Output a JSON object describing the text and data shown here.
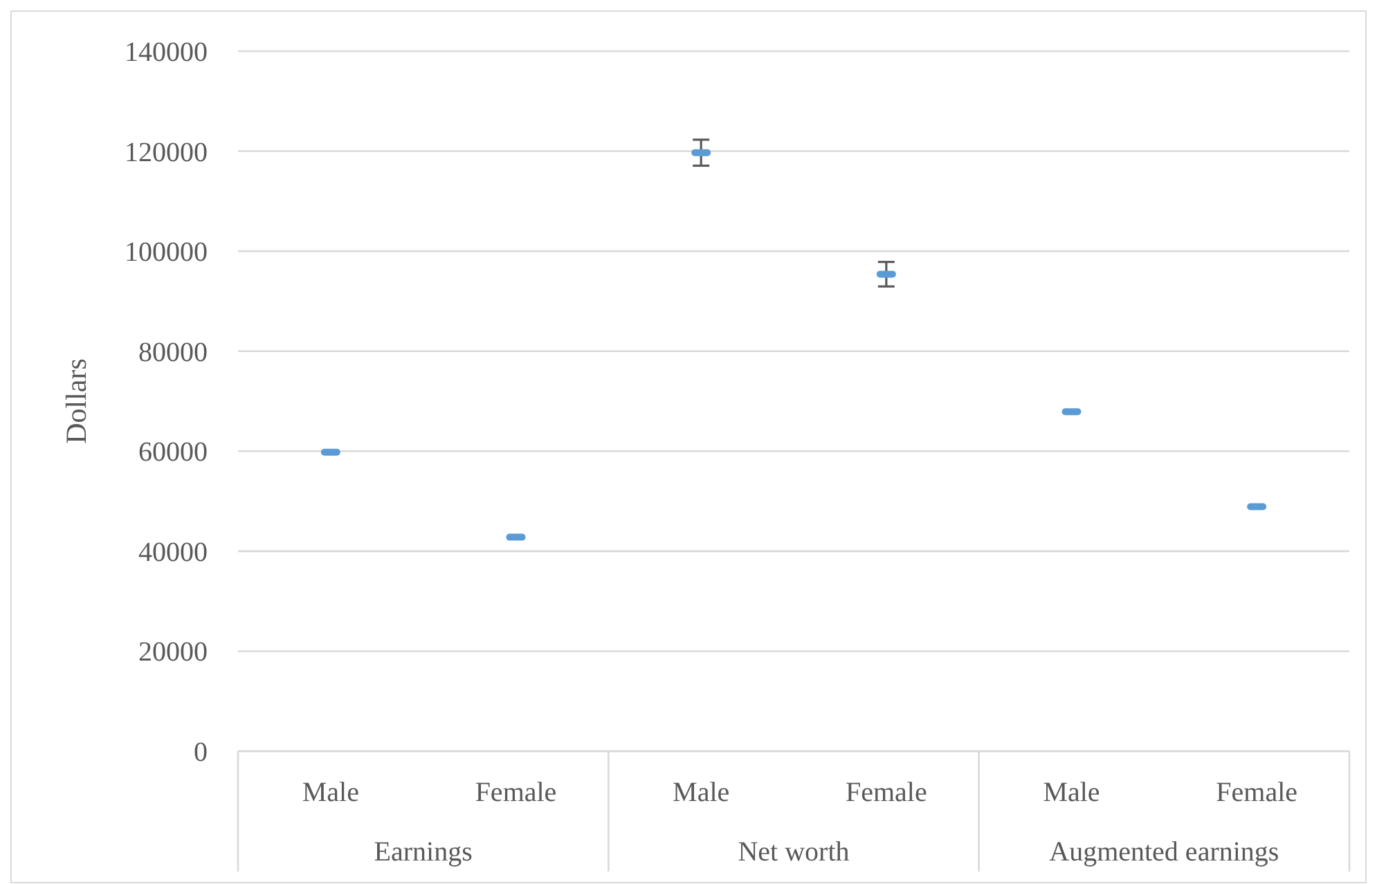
{
  "chart_data": {
    "type": "scatter",
    "ylabel": "Dollars",
    "categories": [
      "Male",
      "Female",
      "Male",
      "Female",
      "Male",
      "Female"
    ],
    "annotations": [
      "Earnings",
      "Net worth",
      "Augmented earnings"
    ],
    "values": [
      59800,
      42800,
      119700,
      95400,
      67900,
      48900
    ],
    "errors": [
      300,
      300,
      2600,
      2450,
      300,
      300
    ],
    "color": "#5b9bd5",
    "ylim": [
      0,
      140000
    ],
    "yticks": [
      0,
      20000,
      40000,
      60000,
      80000,
      100000,
      120000,
      140000
    ],
    "grid": "y"
  }
}
